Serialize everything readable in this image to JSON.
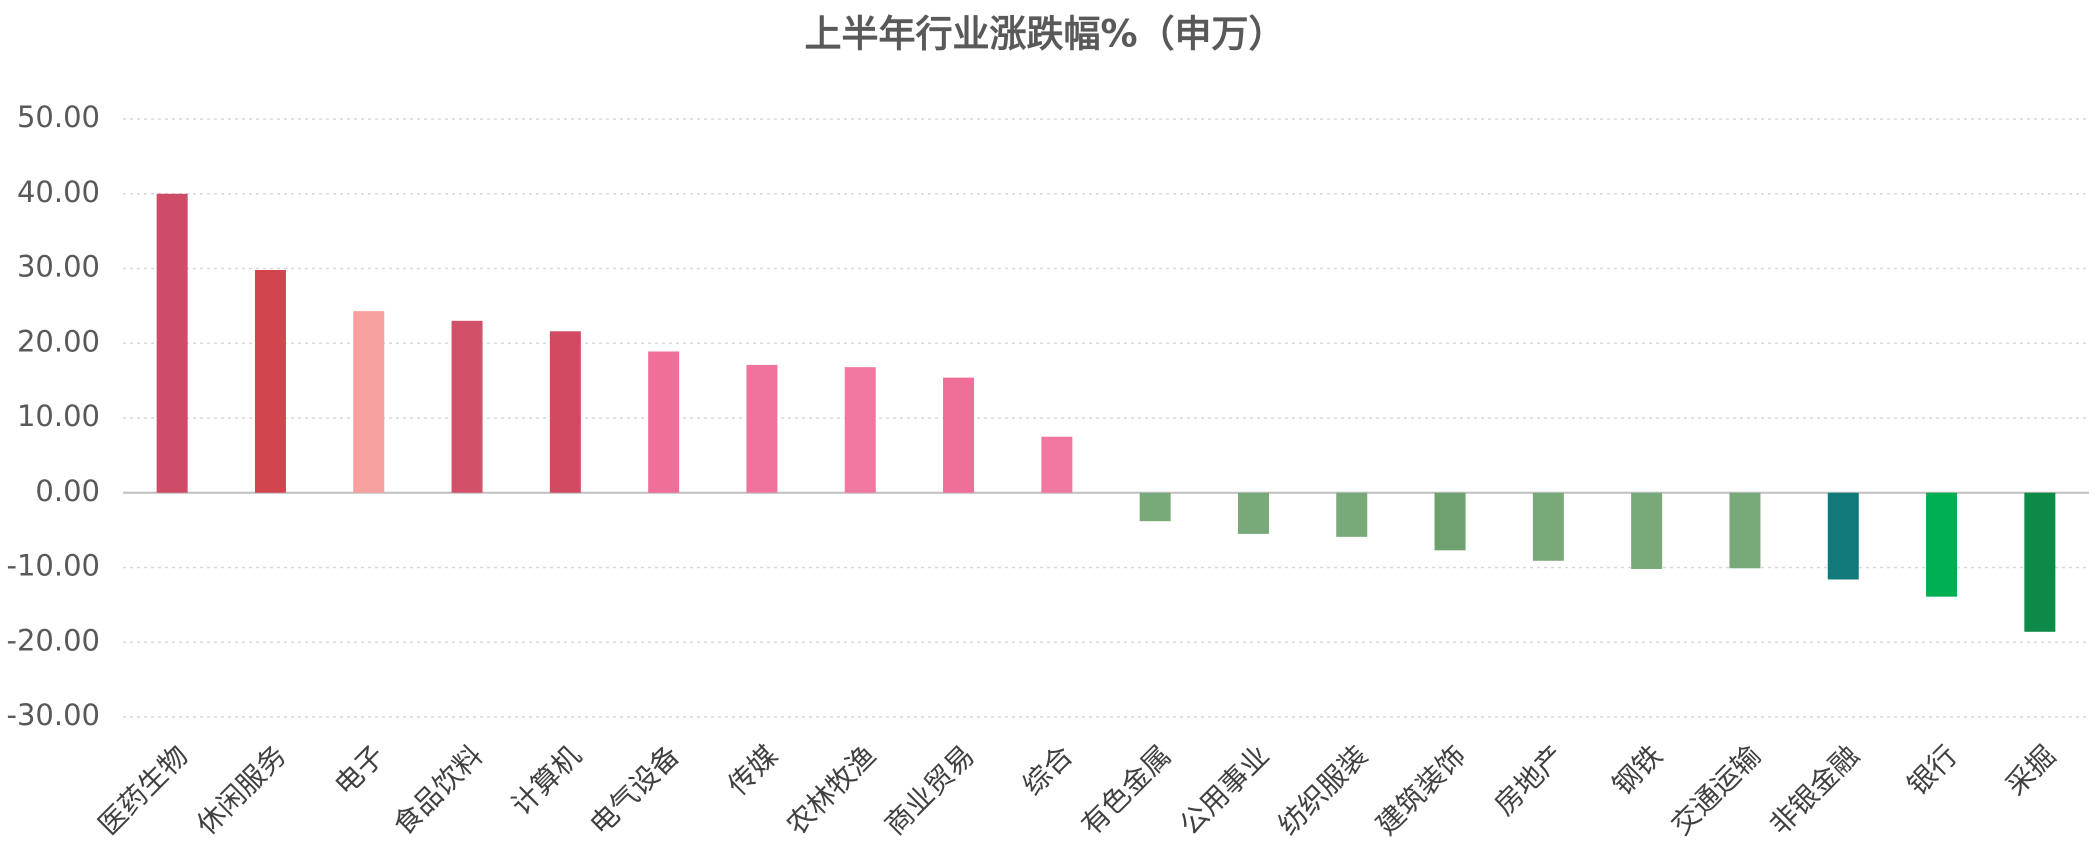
{
  "chart_data": {
    "type": "bar",
    "title": "上半年行业涨跌幅%（申万）",
    "categories": [
      "医药生物",
      "休闲服务",
      "电子",
      "食品饮料",
      "计算机",
      "电气设备",
      "传媒",
      "农林牧渔",
      "商业贸易",
      "综合",
      "有色金属",
      "公用事业",
      "纺织服装",
      "建筑装饰",
      "房地产",
      "钢铁",
      "交通运输",
      "非银金融",
      "银行",
      "采掘"
    ],
    "values": [
      40.0,
      29.8,
      24.3,
      23.0,
      21.6,
      18.9,
      17.1,
      16.8,
      15.4,
      7.5,
      -3.8,
      -5.5,
      -5.9,
      -7.7,
      -9.1,
      -10.2,
      -10.1,
      -11.6,
      -13.9,
      -18.6
    ],
    "colors": [
      "#cf4c68",
      "#d1454f",
      "#f6a0a0",
      "#d3506a",
      "#d24a62",
      "#ef6f98",
      "#ef739c",
      "#ef77a0",
      "#ee6f98",
      "#ef77a0",
      "#7aa979",
      "#7aa979",
      "#7aa979",
      "#6fa06f",
      "#7aa979",
      "#7aa979",
      "#7aa979",
      "#107a7a",
      "#00b050",
      "#0e8a48"
    ],
    "ylim": [
      -30,
      50
    ],
    "yticks": [
      {
        "value": -30,
        "label": "-30.00"
      },
      {
        "value": -20,
        "label": "-20.00"
      },
      {
        "value": -10,
        "label": "-10.00"
      },
      {
        "value": 0,
        "label": "0.00"
      },
      {
        "value": 10,
        "label": "10.00"
      },
      {
        "value": 20,
        "label": "20.00"
      },
      {
        "value": 30,
        "label": "30.00"
      },
      {
        "value": 40,
        "label": "40.00"
      },
      {
        "value": 50,
        "label": "50.00"
      }
    ],
    "grid": true
  }
}
